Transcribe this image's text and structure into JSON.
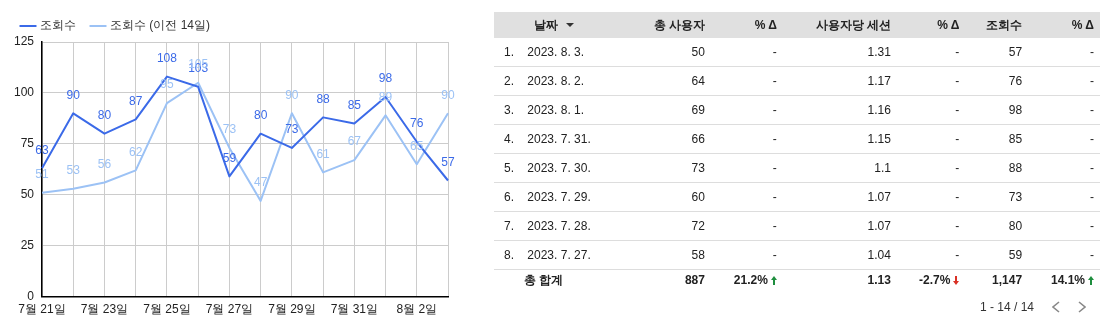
{
  "chart_data": [
    {
      "type": "line",
      "categories": [
        "7월 21일",
        null,
        "7월 23일",
        null,
        "7월 25일",
        null,
        "7월 27일",
        null,
        "7월 29일",
        null,
        "7월 31일",
        null,
        "8월 2일",
        null
      ],
      "series": [
        {
          "name": "조회수",
          "color": "#3b6ae8",
          "values": [
            63,
            90,
            80,
            87,
            108,
            103,
            59,
            80,
            73,
            88,
            85,
            98,
            76,
            57
          ]
        },
        {
          "name": "조회수 (이전 14일)",
          "color": "#9cc2f5",
          "values": [
            51,
            53,
            56,
            62,
            95,
            105,
            73,
            47,
            90,
            61,
            67,
            89,
            65,
            90
          ]
        }
      ],
      "ylim": [
        0,
        125
      ],
      "yticks": [
        0,
        25,
        50,
        75,
        100,
        125
      ],
      "grid": true,
      "legend": "top left",
      "marker": "none",
      "data_labels": true
    },
    {
      "type": "other",
      "categories": [
        null,
        "날짜",
        "총 사용자",
        "% Δ",
        "사용자당 세션",
        "% Δ",
        "조회수",
        "% Δ"
      ],
      "annotations": [
        "1.",
        "2023. 8. 3.",
        "50",
        "-",
        "1.31",
        "-",
        "57",
        "-",
        "2.",
        "2023. 8. 2.",
        "64",
        "-",
        "1.17",
        "-",
        "76",
        "-",
        "3.",
        "2023. 8. 1.",
        "69",
        "-",
        "1.16",
        "-",
        "98",
        "-",
        "4.",
        "2023. 7. 31.",
        "66",
        "-",
        "1.15",
        "-",
        "85",
        "-",
        "5.",
        "2023. 7. 30.",
        "73",
        "-",
        "1.1",
        "-",
        "88",
        "-",
        "6.",
        "2023. 7. 29.",
        "60",
        "-",
        "1.07",
        "-",
        "73",
        "-",
        "7.",
        "2023. 7. 28.",
        "72",
        "-",
        "1.07",
        "-",
        "80",
        "-",
        "8.",
        "2023. 7. 27.",
        "58",
        "-",
        "1.04",
        "-",
        "59",
        "-",
        null,
        "총 합계",
        "887",
        "21.2%",
        "1.13",
        "-2.7%",
        "1,147",
        "14.1%",
        "1 - 14 / 14"
      ]
    }
  ]
}
